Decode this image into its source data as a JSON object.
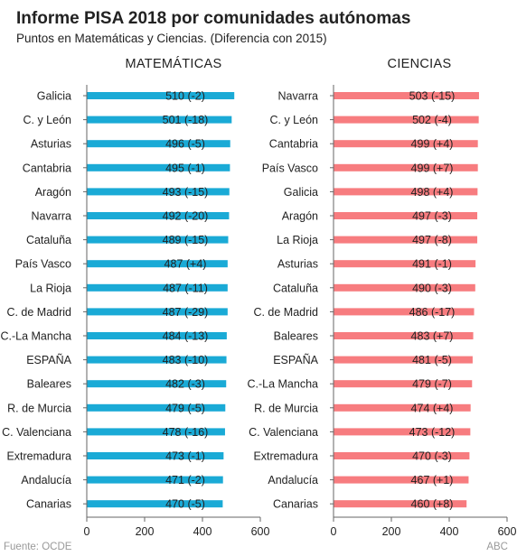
{
  "header": {
    "title": "Informe PISA 2018 por comunidades autónomas",
    "subtitle": "Puntos en Matemáticas y Ciencias. (Diferencia con 2015)"
  },
  "footer": {
    "source": "Fuente: OCDE",
    "credit": "ABC"
  },
  "colors": {
    "matematicas": "#1aaad6",
    "ciencias": "#f77c7f"
  },
  "chart_data": [
    {
      "type": "bar",
      "orientation": "horizontal",
      "title": "MATEMÁTICAS",
      "xlim": [
        0,
        600
      ],
      "xticks": [
        0,
        200,
        400,
        600
      ],
      "grid": false,
      "categories": [
        "Galicia",
        "C. y León",
        "Asturias",
        "Cantabria",
        "Aragón",
        "Navarra",
        "Cataluña",
        "País Vasco",
        "La Rioja",
        "C. de Madrid",
        "C.-La Mancha",
        "ESPAÑA",
        "Baleares",
        "R. de Murcia",
        "C. Valenciana",
        "Extremadura",
        "Andalucía",
        "Canarias"
      ],
      "values": [
        510,
        501,
        496,
        495,
        493,
        492,
        489,
        487,
        487,
        487,
        484,
        483,
        482,
        479,
        478,
        473,
        471,
        470
      ],
      "labels": [
        "510 (-2)",
        "501 (-18)",
        "496 (-5)",
        "495 (-1)",
        "493 (-15)",
        "492 (-20)",
        "489 (-15)",
        "487 (+4)",
        "487 (-11)",
        "487 (-29)",
        "484 (-13)",
        "483 (-10)",
        "482 (-3)",
        "479 (-5)",
        "478 (-16)",
        "473 (-1)",
        "471 (-2)",
        "470 (-5)"
      ]
    },
    {
      "type": "bar",
      "orientation": "horizontal",
      "title": "CIENCIAS",
      "xlim": [
        0,
        600
      ],
      "xticks": [
        0,
        200,
        400,
        600
      ],
      "grid": false,
      "categories": [
        "Navarra",
        "C. y León",
        "Cantabria",
        "País Vasco",
        "Galicia",
        "Aragón",
        "La Rioja",
        "Asturias",
        "Cataluña",
        "C. de Madrid",
        "Baleares",
        "ESPAÑA",
        "C.-La Mancha",
        "R. de Murcia",
        "C. Valenciana",
        "Extremadura",
        "Andalucía",
        "Canarias"
      ],
      "values": [
        503,
        502,
        499,
        499,
        498,
        497,
        497,
        491,
        490,
        486,
        483,
        481,
        479,
        474,
        473,
        470,
        467,
        460
      ],
      "labels": [
        "503 (-15)",
        "502 (-4)",
        "499 (+4)",
        "499 (+7)",
        "498 (+4)",
        "497 (-3)",
        "497 (-8)",
        "491 (-1)",
        "490 (-3)",
        "486 (-17)",
        "483 (+7)",
        "481 (-5)",
        "479 (-7)",
        "474 (+4)",
        "473 (-12)",
        "470 (-3)",
        "467 (+1)",
        "460 (+8)"
      ]
    }
  ]
}
